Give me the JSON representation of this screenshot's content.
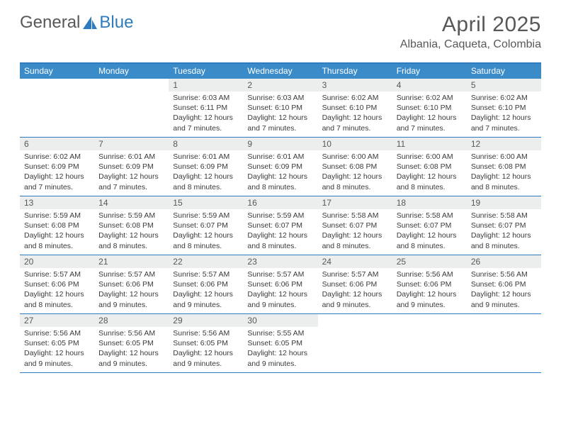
{
  "logo": {
    "part1": "General",
    "part2": "Blue"
  },
  "title": "April 2025",
  "location": "Albania, Caqueta, Colombia",
  "colors": {
    "header_bar": "#3b8bc9",
    "border": "#2f7bbf",
    "daynum_bg": "#eceded",
    "text_dark": "#3a3a3a",
    "text_mid": "#585858"
  },
  "weekdays": [
    "Sunday",
    "Monday",
    "Tuesday",
    "Wednesday",
    "Thursday",
    "Friday",
    "Saturday"
  ],
  "weeks": [
    [
      null,
      null,
      {
        "n": "1",
        "sr": "6:03 AM",
        "ss": "6:11 PM",
        "dl": "12 hours and 7 minutes."
      },
      {
        "n": "2",
        "sr": "6:03 AM",
        "ss": "6:10 PM",
        "dl": "12 hours and 7 minutes."
      },
      {
        "n": "3",
        "sr": "6:02 AM",
        "ss": "6:10 PM",
        "dl": "12 hours and 7 minutes."
      },
      {
        "n": "4",
        "sr": "6:02 AM",
        "ss": "6:10 PM",
        "dl": "12 hours and 7 minutes."
      },
      {
        "n": "5",
        "sr": "6:02 AM",
        "ss": "6:10 PM",
        "dl": "12 hours and 7 minutes."
      }
    ],
    [
      {
        "n": "6",
        "sr": "6:02 AM",
        "ss": "6:09 PM",
        "dl": "12 hours and 7 minutes."
      },
      {
        "n": "7",
        "sr": "6:01 AM",
        "ss": "6:09 PM",
        "dl": "12 hours and 7 minutes."
      },
      {
        "n": "8",
        "sr": "6:01 AM",
        "ss": "6:09 PM",
        "dl": "12 hours and 8 minutes."
      },
      {
        "n": "9",
        "sr": "6:01 AM",
        "ss": "6:09 PM",
        "dl": "12 hours and 8 minutes."
      },
      {
        "n": "10",
        "sr": "6:00 AM",
        "ss": "6:08 PM",
        "dl": "12 hours and 8 minutes."
      },
      {
        "n": "11",
        "sr": "6:00 AM",
        "ss": "6:08 PM",
        "dl": "12 hours and 8 minutes."
      },
      {
        "n": "12",
        "sr": "6:00 AM",
        "ss": "6:08 PM",
        "dl": "12 hours and 8 minutes."
      }
    ],
    [
      {
        "n": "13",
        "sr": "5:59 AM",
        "ss": "6:08 PM",
        "dl": "12 hours and 8 minutes."
      },
      {
        "n": "14",
        "sr": "5:59 AM",
        "ss": "6:08 PM",
        "dl": "12 hours and 8 minutes."
      },
      {
        "n": "15",
        "sr": "5:59 AM",
        "ss": "6:07 PM",
        "dl": "12 hours and 8 minutes."
      },
      {
        "n": "16",
        "sr": "5:59 AM",
        "ss": "6:07 PM",
        "dl": "12 hours and 8 minutes."
      },
      {
        "n": "17",
        "sr": "5:58 AM",
        "ss": "6:07 PM",
        "dl": "12 hours and 8 minutes."
      },
      {
        "n": "18",
        "sr": "5:58 AM",
        "ss": "6:07 PM",
        "dl": "12 hours and 8 minutes."
      },
      {
        "n": "19",
        "sr": "5:58 AM",
        "ss": "6:07 PM",
        "dl": "12 hours and 8 minutes."
      }
    ],
    [
      {
        "n": "20",
        "sr": "5:57 AM",
        "ss": "6:06 PM",
        "dl": "12 hours and 8 minutes."
      },
      {
        "n": "21",
        "sr": "5:57 AM",
        "ss": "6:06 PM",
        "dl": "12 hours and 9 minutes."
      },
      {
        "n": "22",
        "sr": "5:57 AM",
        "ss": "6:06 PM",
        "dl": "12 hours and 9 minutes."
      },
      {
        "n": "23",
        "sr": "5:57 AM",
        "ss": "6:06 PM",
        "dl": "12 hours and 9 minutes."
      },
      {
        "n": "24",
        "sr": "5:57 AM",
        "ss": "6:06 PM",
        "dl": "12 hours and 9 minutes."
      },
      {
        "n": "25",
        "sr": "5:56 AM",
        "ss": "6:06 PM",
        "dl": "12 hours and 9 minutes."
      },
      {
        "n": "26",
        "sr": "5:56 AM",
        "ss": "6:06 PM",
        "dl": "12 hours and 9 minutes."
      }
    ],
    [
      {
        "n": "27",
        "sr": "5:56 AM",
        "ss": "6:05 PM",
        "dl": "12 hours and 9 minutes."
      },
      {
        "n": "28",
        "sr": "5:56 AM",
        "ss": "6:05 PM",
        "dl": "12 hours and 9 minutes."
      },
      {
        "n": "29",
        "sr": "5:56 AM",
        "ss": "6:05 PM",
        "dl": "12 hours and 9 minutes."
      },
      {
        "n": "30",
        "sr": "5:55 AM",
        "ss": "6:05 PM",
        "dl": "12 hours and 9 minutes."
      },
      null,
      null,
      null
    ]
  ],
  "labels": {
    "sunrise": "Sunrise:",
    "sunset": "Sunset:",
    "daylight": "Daylight:"
  }
}
